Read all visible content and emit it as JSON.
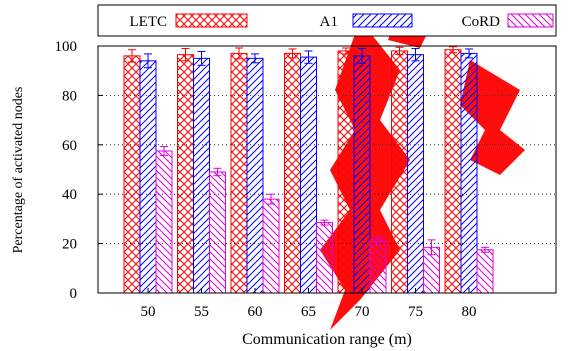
{
  "chart_data": {
    "type": "bar",
    "title": "",
    "xlabel": "Communication range (m)",
    "ylabel": "Percentage of activated nodes",
    "categories": [
      "50",
      "55",
      "60",
      "65",
      "70",
      "75",
      "80"
    ],
    "ylim": [
      0,
      100
    ],
    "yticks": [
      "0",
      "20",
      "40",
      "60",
      "80",
      "100"
    ],
    "grid": "horizontal dotted",
    "legend_position": "top",
    "series": [
      {
        "name": "LETC",
        "values": [
          96,
          96.5,
          97,
          97,
          98,
          98,
          98.5
        ],
        "errors": [
          2.5,
          2.5,
          2.2,
          1.8,
          1.2,
          1.5,
          1.2
        ],
        "color": "#ff0000",
        "pattern": "crosshatch"
      },
      {
        "name": "A1",
        "values": [
          94,
          95,
          95,
          95.5,
          96,
          96.5,
          97
        ],
        "errors": [
          2.8,
          2.8,
          1.8,
          2.5,
          3.0,
          2.5,
          1.8
        ],
        "color": "#0000ff",
        "pattern": "diagonal"
      },
      {
        "name": "CoRD",
        "values": [
          57.5,
          49,
          38,
          28.5,
          21.5,
          18.5,
          17.5
        ],
        "errors": [
          1.8,
          1.5,
          2.0,
          1.0,
          1.2,
          3.0,
          1.0
        ],
        "color": "#dd00dd",
        "pattern": "diagonal-reverse"
      }
    ]
  },
  "watermark": {
    "label": "red diagonal watermark graphic",
    "color": "#ff0000"
  }
}
